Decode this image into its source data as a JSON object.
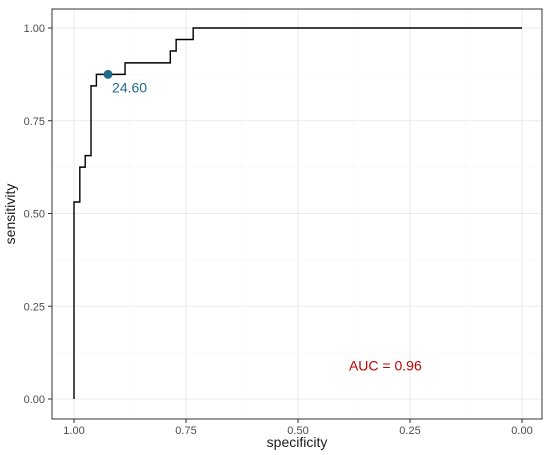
{
  "chart_data": {
    "type": "line",
    "title": "",
    "xlabel": "specificity",
    "ylabel": "sensitivity",
    "x_reversed": true,
    "xlim": [
      1.0,
      0.0
    ],
    "ylim": [
      0.0,
      1.0
    ],
    "x_ticks": [
      1.0,
      0.75,
      0.5,
      0.25,
      0.0
    ],
    "x_tick_labels": [
      "1.00",
      "0.75",
      "0.50",
      "0.25",
      "0.00"
    ],
    "y_ticks": [
      0.0,
      0.25,
      0.5,
      0.75,
      1.0
    ],
    "y_tick_labels": [
      "0.00",
      "0.25",
      "0.50",
      "0.75",
      "1.00"
    ],
    "grid": true,
    "series": [
      {
        "line_color": "#000000",
        "points": [
          [
            1.0,
            0.0
          ],
          [
            1.0,
            0.531
          ],
          [
            0.987,
            0.531
          ],
          [
            0.987,
            0.625
          ],
          [
            0.975,
            0.625
          ],
          [
            0.975,
            0.656
          ],
          [
            0.962,
            0.656
          ],
          [
            0.962,
            0.844
          ],
          [
            0.95,
            0.844
          ],
          [
            0.95,
            0.875
          ],
          [
            0.924,
            0.875
          ],
          [
            0.924,
            0.875
          ],
          [
            0.886,
            0.875
          ],
          [
            0.886,
            0.906
          ],
          [
            0.785,
            0.906
          ],
          [
            0.785,
            0.938
          ],
          [
            0.772,
            0.938
          ],
          [
            0.772,
            0.969
          ],
          [
            0.734,
            0.969
          ],
          [
            0.734,
            1.0
          ],
          [
            0.0,
            1.0
          ]
        ]
      }
    ],
    "threshold_point": {
      "x": 0.924,
      "y": 0.875,
      "label": "24.60",
      "color": "#1e6a8c"
    },
    "auc_annotation": {
      "text": "AUC = 0.96",
      "x": 0.305,
      "y": 0.09,
      "color": "#c00000"
    }
  }
}
